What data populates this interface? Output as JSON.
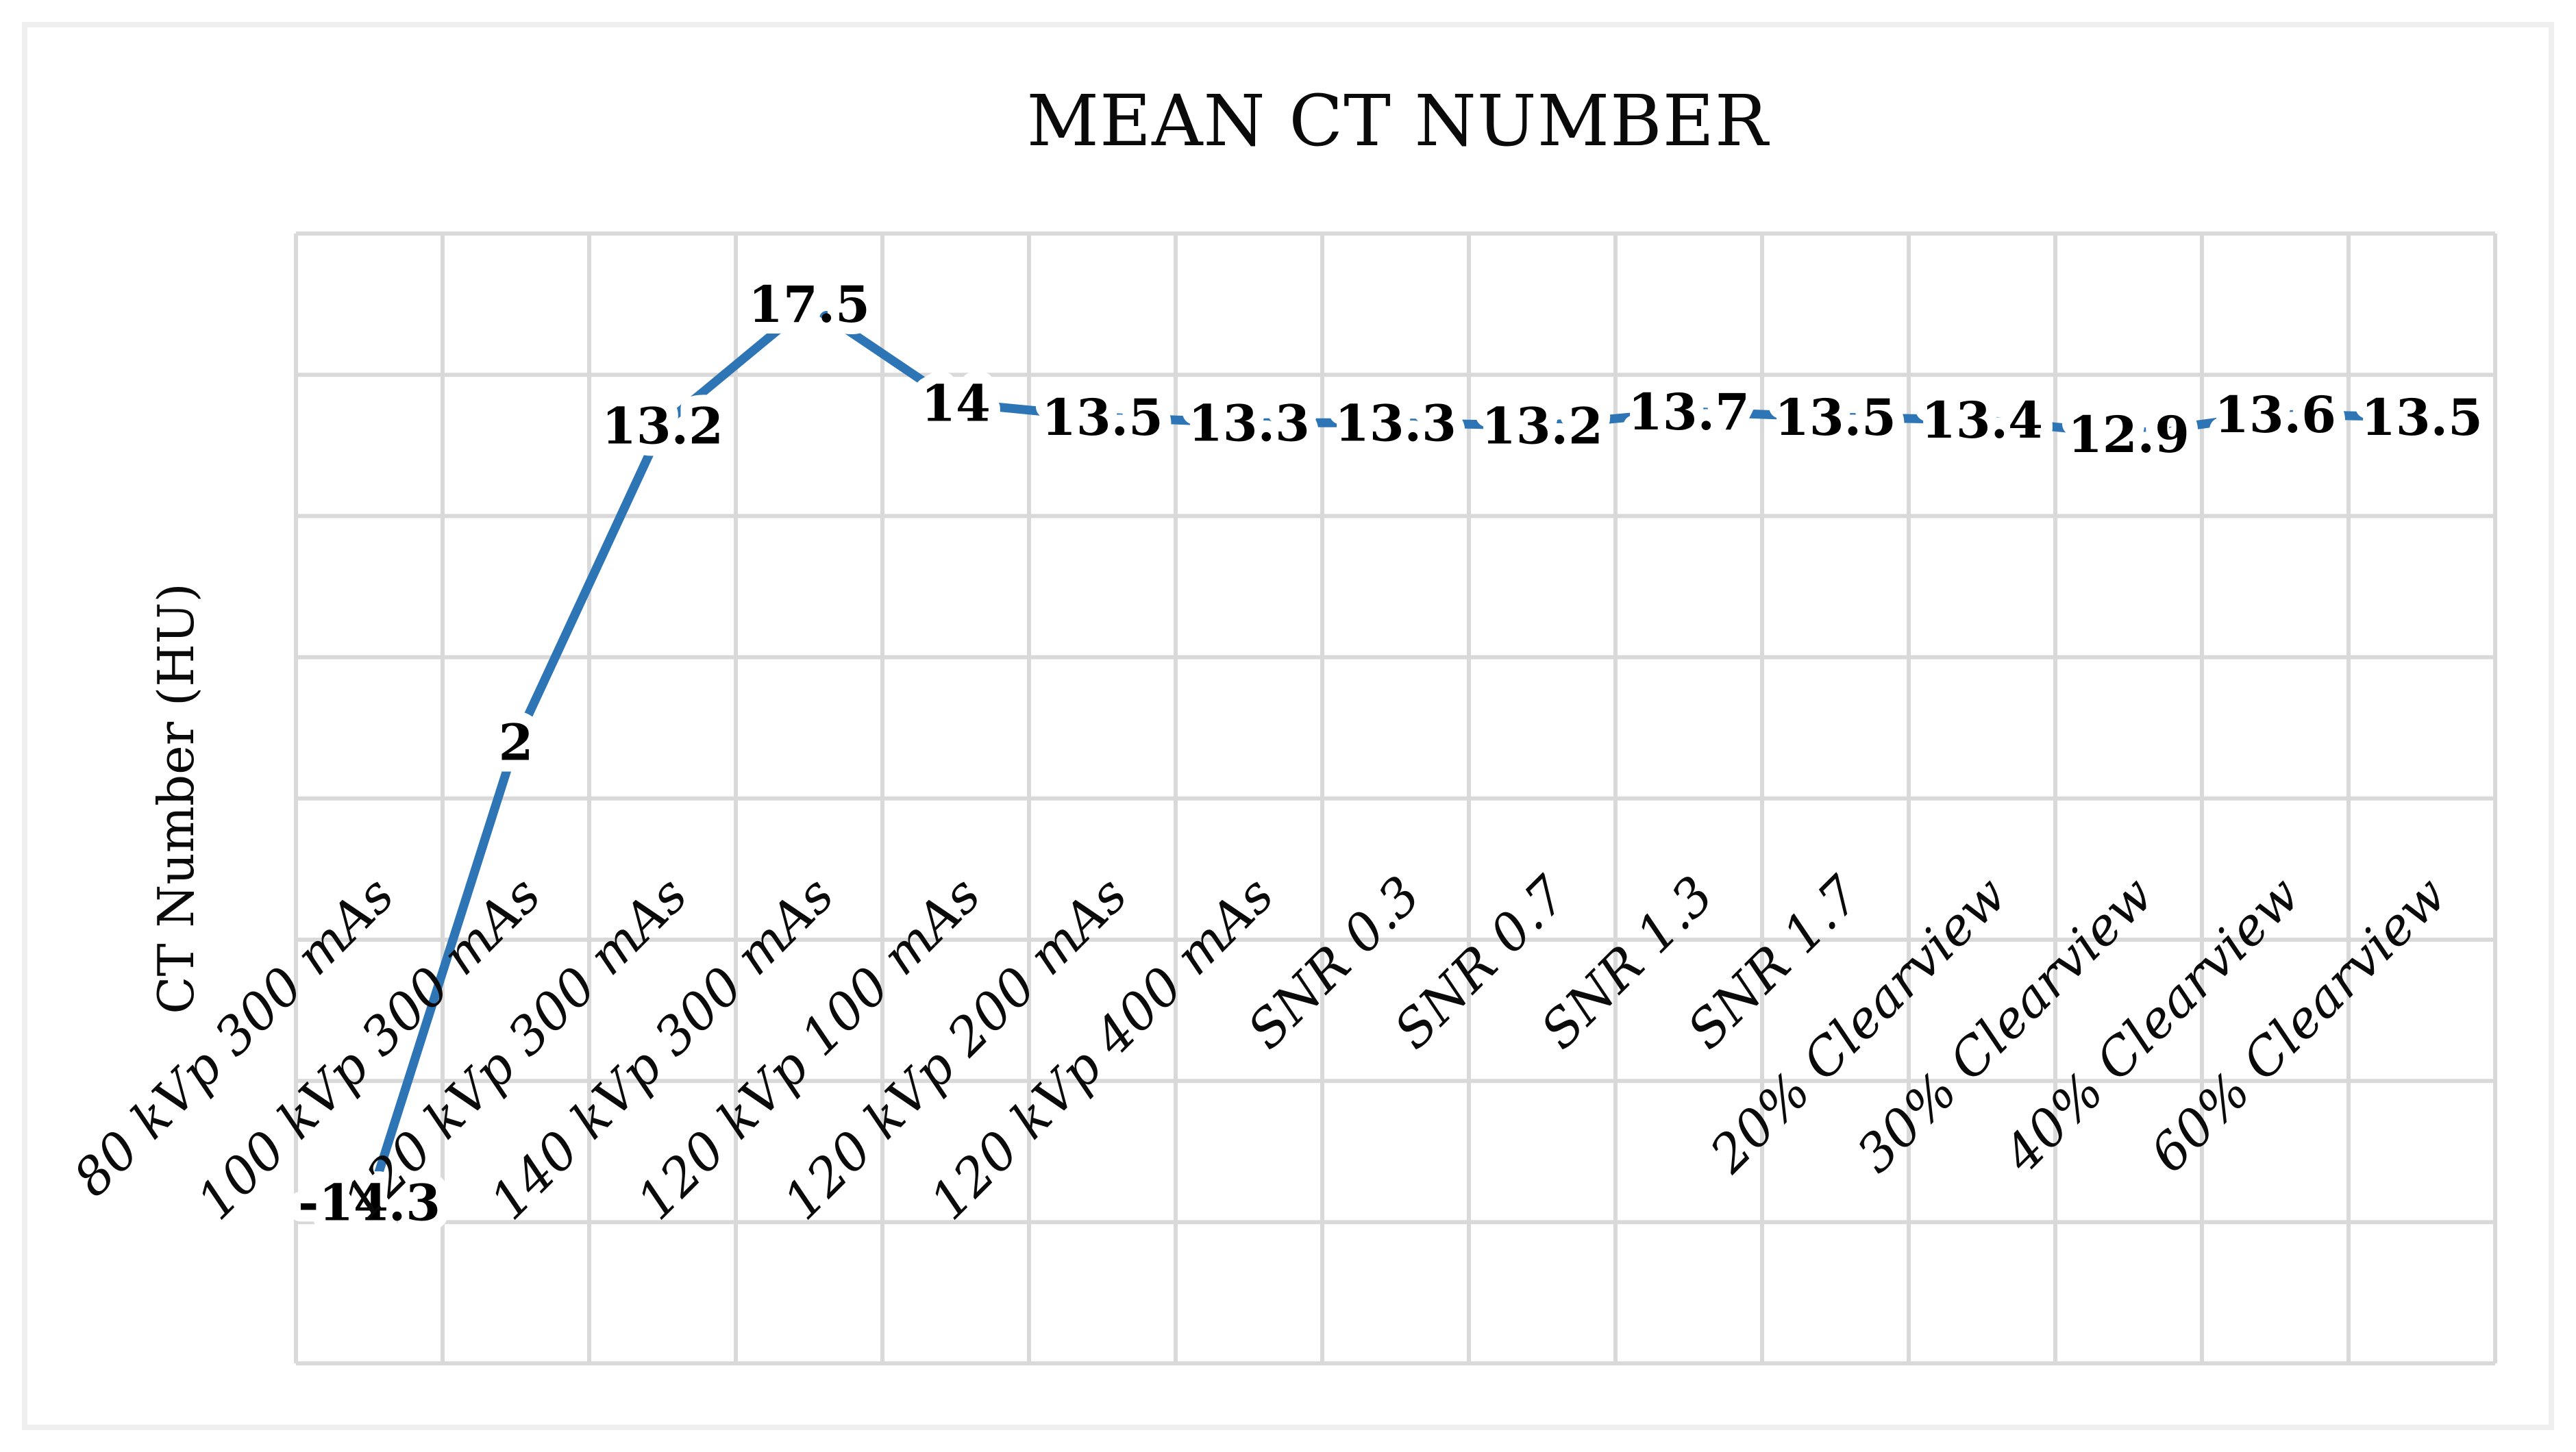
{
  "figure": {
    "title": "MEAN CT NUMBER",
    "background_color": "#ffffff",
    "border_color": "#efefef"
  },
  "chart_data": {
    "type": "line",
    "title": "MEAN CT NUMBER",
    "xlabel": "",
    "ylabel": "CT Number (HU)",
    "categories": [
      "80 kVp 300 mAs",
      "100 kVp 300 mAs",
      "120 kVp 300 mAs",
      "140 kVp 300 mAs",
      "120 kVp 100 mAs",
      "120 kVp 200 mAs",
      "120 kVp 400 mAs",
      "SNR 0.3",
      "SNR 0.7",
      "SNR 1.3",
      "SNR 1.7",
      "20% Clearview",
      "30% Clearview",
      "40% Clearview",
      "60% Clearview"
    ],
    "values": [
      -14.3,
      2,
      13.2,
      17.5,
      14,
      13.5,
      13.3,
      13.3,
      13.2,
      13.7,
      13.5,
      13.4,
      12.9,
      13.6,
      13.5
    ],
    "data_labels": [
      "-14.3",
      "2",
      "13.2",
      "17.5",
      "14",
      "13.5",
      "13.3",
      "13.3",
      "13.2",
      "13.7",
      "13.5",
      "13.4",
      "12.9",
      "13.6",
      "13.5"
    ],
    "ylim": [
      -20,
      20
    ],
    "y_gridline_step": 5,
    "y_tick_labels_visible": false,
    "grid": "both",
    "legend": "none",
    "category_label_rotation_deg": 45,
    "axis_crosses_at": 0,
    "line_color": "#2E75B6",
    "gridline_color": "#D9D9D9",
    "label_color": "#000000"
  }
}
